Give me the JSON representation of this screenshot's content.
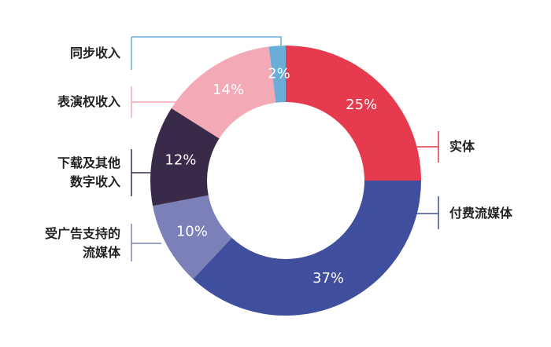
{
  "chart_data": {
    "type": "donut",
    "categories": [
      "实体",
      "付费流媒体",
      "受广告支持的\n流媒体",
      "下载及其他\n数字收入",
      "表演权收入",
      "同步收入"
    ],
    "values": [
      25,
      37,
      10,
      12,
      14,
      2
    ],
    "value_labels": [
      "25%",
      "37%",
      "10%",
      "12%",
      "14%",
      "2%"
    ],
    "colors": [
      "#e63a4e",
      "#3f4f9e",
      "#7b80b8",
      "#3a2a4a",
      "#f4aab6",
      "#6aaed8"
    ]
  }
}
